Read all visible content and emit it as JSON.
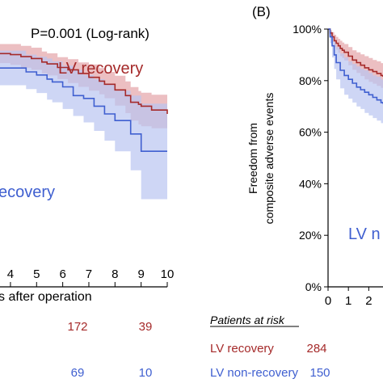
{
  "colors": {
    "recovery_line": "#a52a2a",
    "recovery_band": "#e6a9ae",
    "nonrecovery_line": "#3f5fd0",
    "nonrecovery_band": "#b9c5f1",
    "axis": "#000000"
  },
  "chart_data": [
    {
      "panel": "A",
      "type": "line",
      "subtype": "kaplan-meier step with confidence bands",
      "annotation": "P=0.001 (Log-rank)",
      "xlabel_partial": "s after operation",
      "ylabel": "",
      "xlim": [
        3.6,
        10.0
      ],
      "ylim": [
        0,
        100
      ],
      "x_tick_labels": [
        "4",
        "5",
        "6",
        "7",
        "8",
        "9",
        "10"
      ],
      "grid": false,
      "series": [
        {
          "name": "LV recovery",
          "label_text": "LV recovery",
          "color": "#a52a2a",
          "band_color": "#e6a9ae",
          "x": [
            3.6,
            4.0,
            4.4,
            4.8,
            5.2,
            5.4,
            5.8,
            6.2,
            6.6,
            7.0,
            7.4,
            7.6,
            8.0,
            8.4,
            8.6,
            8.9,
            9.0,
            9.4,
            10.0
          ],
          "y": [
            90.5,
            90.1,
            89.3,
            88.6,
            87.2,
            86.5,
            85.1,
            84.2,
            82.8,
            81.3,
            79.8,
            78.6,
            76.4,
            74.2,
            71.6,
            70.8,
            70.1,
            68.6,
            67.1
          ],
          "upper": [
            94.2,
            94.2,
            93.5,
            92.8,
            91.3,
            90.6,
            89.1,
            88.3,
            87.1,
            86.3,
            84.9,
            83.4,
            81.9,
            79.7,
            77.5,
            76.0,
            75.3,
            74.5,
            73.8
          ],
          "lower": [
            86.8,
            86.1,
            85.0,
            84.2,
            82.8,
            82.0,
            80.6,
            79.1,
            77.6,
            76.1,
            74.7,
            73.2,
            70.3,
            67.4,
            64.5,
            63.0,
            62.3,
            61.5,
            60.8
          ]
        },
        {
          "name": "LV non-recovery",
          "label_text": "ecovery",
          "color": "#3f5fd0",
          "band_color": "#b9c5f1",
          "x": [
            3.6,
            4.0,
            4.6,
            5.0,
            5.4,
            5.6,
            6.0,
            6.4,
            6.8,
            7.2,
            7.6,
            8.0,
            8.6,
            9.0,
            10.0
          ],
          "y": [
            84.9,
            84.9,
            83.4,
            82.2,
            80.6,
            79.5,
            77.6,
            74.2,
            73.1,
            70.1,
            67.1,
            64.5,
            59.3,
            52.6,
            52.6
          ],
          "upper": [
            91.6,
            91.6,
            90.1,
            89.3,
            88.6,
            87.5,
            85.8,
            84.2,
            82.2,
            80.6,
            78.6,
            76.1,
            74.2,
            71.1,
            71.1
          ],
          "lower": [
            78.2,
            78.2,
            76.7,
            75.2,
            72.6,
            71.6,
            69.0,
            66.3,
            63.8,
            60.5,
            56.7,
            52.6,
            45.2,
            34.0,
            34.0
          ]
        }
      ],
      "at_risk": {
        "rows": [
          {
            "name": "LV recovery",
            "color": "#a52a2a",
            "values": [
              "172",
              "39"
            ]
          },
          {
            "name": "LV non-recovery",
            "color": "#3f5fd0",
            "values": [
              "69",
              "10"
            ]
          }
        ]
      }
    },
    {
      "panel": "B",
      "panel_label": "(B)",
      "type": "line",
      "subtype": "kaplan-meier step with confidence bands",
      "ylabel_line1": "Freedom from",
      "ylabel_line2": "composite adverse events",
      "y_tick_labels": [
        "100%",
        "80%",
        "60%",
        "40%",
        "20%",
        "0%"
      ],
      "x_tick_labels": [
        "0",
        "1",
        "2"
      ],
      "xlim": [
        0,
        2.7
      ],
      "ylim": [
        0,
        100
      ],
      "grid": false,
      "series": [
        {
          "name": "LV recovery",
          "color": "#a52a2a",
          "band_color": "#e6a9ae",
          "x": [
            0.0,
            0.1,
            0.2,
            0.3,
            0.4,
            0.5,
            0.6,
            0.7,
            0.8,
            1.0,
            1.2,
            1.4,
            1.6,
            1.8,
            2.0,
            2.2,
            2.4,
            2.6,
            2.7
          ],
          "y": [
            100,
            98.5,
            97.0,
            95.5,
            94.5,
            93.5,
            92.5,
            91.8,
            91.0,
            89.5,
            88.0,
            87.0,
            86.0,
            85.0,
            84.2,
            83.5,
            82.8,
            82.0,
            81.5
          ],
          "upper": [
            100,
            99.5,
            98.8,
            97.8,
            97.0,
            96.2,
            95.5,
            94.8,
            94.2,
            93.0,
            91.8,
            91.0,
            90.2,
            89.5,
            88.8,
            88.0,
            87.5,
            86.8,
            86.5
          ],
          "lower": [
            100,
            97.5,
            95.0,
            93.0,
            92.0,
            90.8,
            89.5,
            88.8,
            87.8,
            86.0,
            84.2,
            83.0,
            81.8,
            80.5,
            79.5,
            78.8,
            78.0,
            77.2,
            76.5
          ]
        },
        {
          "name": "LV non-recovery",
          "label_text": "LV n",
          "color": "#3f5fd0",
          "band_color": "#b9c5f1",
          "x": [
            0.0,
            0.1,
            0.2,
            0.3,
            0.4,
            0.6,
            0.8,
            1.0,
            1.2,
            1.4,
            1.6,
            1.8,
            2.0,
            2.2,
            2.4,
            2.6,
            2.7
          ],
          "y": [
            100,
            97.0,
            93.5,
            90.0,
            87.0,
            84.0,
            82.0,
            80.5,
            79.0,
            77.5,
            76.5,
            75.5,
            74.5,
            73.5,
            72.5,
            71.5,
            71.0
          ],
          "upper": [
            100,
            99.0,
            97.0,
            95.0,
            93.0,
            90.5,
            89.0,
            87.5,
            86.5,
            85.5,
            84.5,
            84.0,
            83.0,
            82.0,
            81.5,
            80.5,
            80.0
          ],
          "lower": [
            100,
            94.5,
            89.0,
            84.5,
            80.5,
            77.0,
            74.5,
            73.0,
            71.5,
            70.0,
            69.0,
            67.5,
            66.5,
            65.5,
            64.5,
            63.5,
            63.0
          ]
        }
      ],
      "at_risk": {
        "title": "Patients at risk",
        "rows": [
          {
            "name": "LV recovery",
            "color": "#a52a2a",
            "values": [
              "284"
            ]
          },
          {
            "name": "LV non-recovery",
            "color": "#3f5fd0",
            "values": [
              "150"
            ]
          }
        ]
      }
    }
  ]
}
